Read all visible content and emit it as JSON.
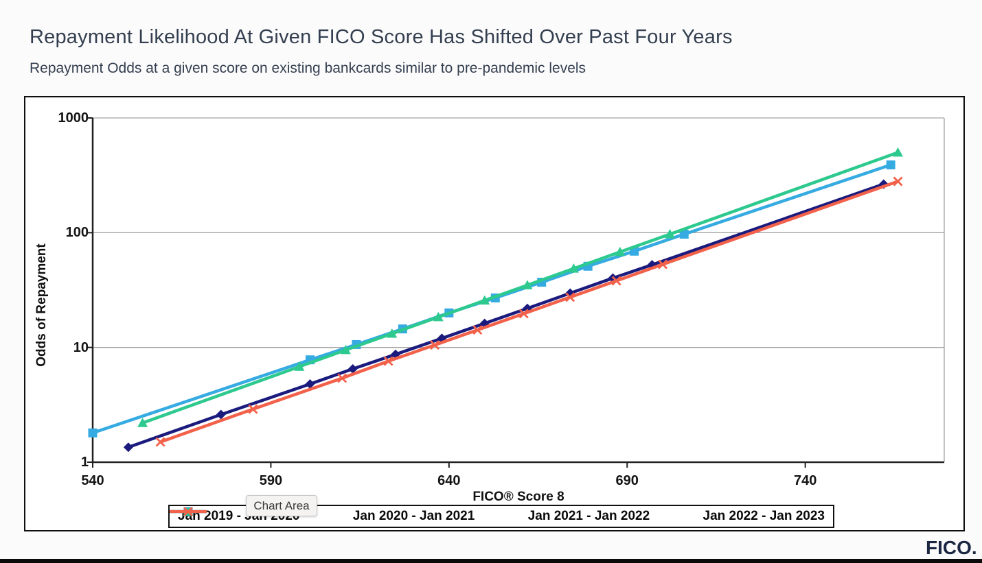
{
  "page": {
    "title": "Repayment Likelihood At Given FICO Score Has Shifted Over Past Four Years",
    "subtitle": "Repayment Odds at a given score on existing bankcards similar to pre-pandemic levels",
    "brand_logo": "FICO.",
    "colors": {
      "background": "#fcfbfb",
      "title_text": "#333f50",
      "chart_border": "#0e0e0e",
      "gridline": "#a3a3a3",
      "axis": "#202020",
      "bottom_bar": "#0a0a0a",
      "logo": "#1b2742"
    }
  },
  "tooltip": {
    "label": "Chart Area"
  },
  "chart_data": {
    "type": "line",
    "title": "",
    "xlabel": "FICO® Score 8",
    "ylabel": "Odds of Repayment",
    "y_scale": "log10",
    "xlim": [
      540,
      779
    ],
    "ylim": [
      1,
      1000
    ],
    "x_ticks": [
      540,
      590,
      640,
      690,
      740
    ],
    "y_ticks": [
      1000,
      100,
      10,
      1
    ],
    "grid": "horizontal-decades",
    "legend_position": "bottom",
    "series": [
      {
        "name": "Jan 2019 - Jan 2020",
        "color": "#1b1b7e",
        "marker": "diamond",
        "points": [
          [
            550,
            1.35
          ],
          [
            576,
            2.6
          ],
          [
            601,
            4.8
          ],
          [
            613,
            6.5
          ],
          [
            625,
            8.7
          ],
          [
            638,
            12
          ],
          [
            650,
            16.2
          ],
          [
            662,
            21.9
          ],
          [
            674,
            29.7
          ],
          [
            686,
            40.2
          ],
          [
            697,
            52.5
          ],
          [
            762,
            265
          ]
        ]
      },
      {
        "name": "Jan 2020 - Jan 2021",
        "color": "#35abe2",
        "marker": "square",
        "points": [
          [
            540,
            1.8
          ],
          [
            601,
            7.8
          ],
          [
            614,
            10.6
          ],
          [
            627,
            14.5
          ],
          [
            640,
            20
          ],
          [
            653,
            27
          ],
          [
            666,
            37
          ],
          [
            679,
            51
          ],
          [
            692,
            69
          ],
          [
            706,
            97
          ],
          [
            764,
            390
          ]
        ]
      },
      {
        "name": "Jan 2021 - Jan 2022",
        "color": "#2dc98e",
        "marker": "triangle",
        "points": [
          [
            554,
            2.2
          ],
          [
            598,
            6.8
          ],
          [
            611,
            9.5
          ],
          [
            624,
            13.2
          ],
          [
            637,
            18.4
          ],
          [
            650,
            25.7
          ],
          [
            662,
            34.9
          ],
          [
            675,
            48.7
          ],
          [
            688,
            68
          ],
          [
            702,
            97
          ],
          [
            766,
            500
          ]
        ]
      },
      {
        "name": "Jan 2022 - Jan 2023",
        "color": "#f2614a",
        "marker": "x",
        "points": [
          [
            559,
            1.5
          ],
          [
            585,
            2.9
          ],
          [
            610,
            5.4
          ],
          [
            623,
            7.6
          ],
          [
            636,
            10.5
          ],
          [
            648,
            14.2
          ],
          [
            661,
            19.7
          ],
          [
            674,
            27.4
          ],
          [
            687,
            38.1
          ],
          [
            700,
            53
          ],
          [
            766,
            280
          ]
        ]
      }
    ]
  }
}
